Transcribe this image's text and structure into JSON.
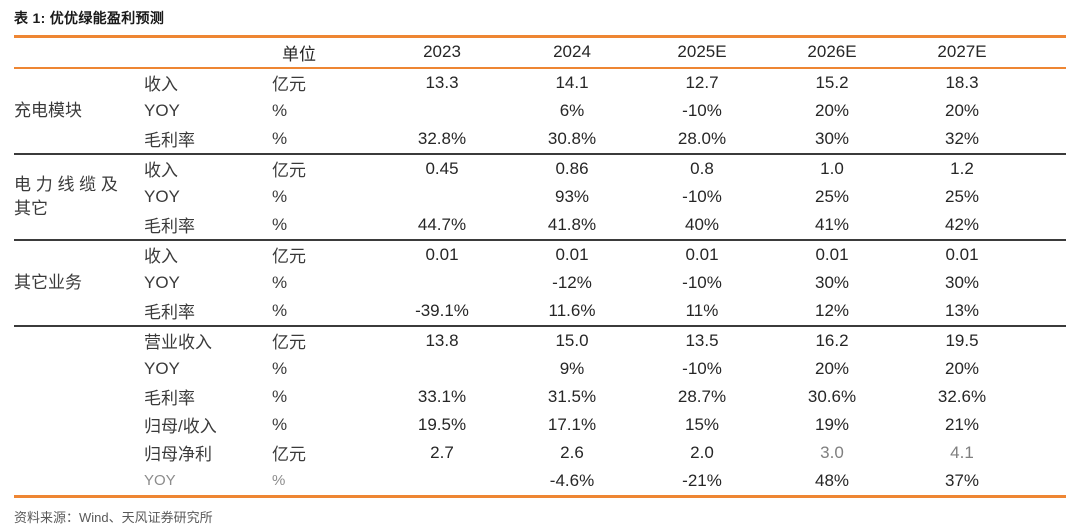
{
  "title": "表 1: 优优绿能盈利预测",
  "source": "资料来源：Wind、天风证券研究所",
  "colors": {
    "accent_orange": "#EE8633",
    "dark_separator": "#3B3B3B",
    "body_text": "#262626",
    "muted_value": "#7F7F7F",
    "source_text": "#595959"
  },
  "table": {
    "headers": [
      "",
      "",
      "单位",
      "2023",
      "2024",
      "2025E",
      "2026E",
      "2027E"
    ],
    "groups": [
      {
        "name": "充电模块",
        "rows": [
          {
            "metric": "收入",
            "unit": "亿元",
            "values": [
              "13.3",
              "14.1",
              "12.7",
              "15.2",
              "18.3"
            ]
          },
          {
            "metric": "YOY",
            "unit": "%",
            "values": [
              "",
              "6%",
              "-10%",
              "20%",
              "20%"
            ]
          },
          {
            "metric": "毛利率",
            "unit": "%",
            "values": [
              "32.8%",
              "30.8%",
              "28.0%",
              "30%",
              "32%"
            ]
          }
        ]
      },
      {
        "name": "电力线缆及其它",
        "name_lines": [
          "电 力 线 缆 及",
          "其它"
        ],
        "rows": [
          {
            "metric": "收入",
            "unit": "亿元",
            "values": [
              "0.45",
              "0.86",
              "0.8",
              "1.0",
              "1.2"
            ]
          },
          {
            "metric": "YOY",
            "unit": "%",
            "values": [
              "",
              "93%",
              "-10%",
              "25%",
              "25%"
            ]
          },
          {
            "metric": "毛利率",
            "unit": "%",
            "values": [
              "44.7%",
              "41.8%",
              "40%",
              "41%",
              "42%"
            ]
          }
        ]
      },
      {
        "name": "其它业务",
        "rows": [
          {
            "metric": "收入",
            "unit": "亿元",
            "values": [
              "0.01",
              "0.01",
              "0.01",
              "0.01",
              "0.01"
            ]
          },
          {
            "metric": "YOY",
            "unit": "%",
            "values": [
              "",
              "-12%",
              "-10%",
              "30%",
              "30%"
            ]
          },
          {
            "metric": "毛利率",
            "unit": "%",
            "values": [
              "-39.1%",
              "11.6%",
              "11%",
              "12%",
              "13%"
            ]
          }
        ]
      },
      {
        "name": "",
        "rows": [
          {
            "metric": "营业收入",
            "unit": "亿元",
            "values": [
              "13.8",
              "15.0",
              "13.5",
              "16.2",
              "19.5"
            ]
          },
          {
            "metric": "YOY",
            "unit": "%",
            "values": [
              "",
              "9%",
              "-10%",
              "20%",
              "20%"
            ]
          },
          {
            "metric": "毛利率",
            "unit": "%",
            "values": [
              "33.1%",
              "31.5%",
              "28.7%",
              "30.6%",
              "32.6%"
            ]
          },
          {
            "metric": "归母/收入",
            "unit": "%",
            "values": [
              "19.5%",
              "17.1%",
              "15%",
              "19%",
              "21%"
            ]
          },
          {
            "metric": "归母净利",
            "unit": "亿元",
            "values": [
              "2.7",
              "2.6",
              "2.0",
              "3.0",
              "4.1"
            ],
            "muted_value_indices": [
              3,
              4
            ]
          },
          {
            "metric": "YOY",
            "unit": "%",
            "values": [
              "",
              "-4.6%",
              "-21%",
              "48%",
              "37%"
            ],
            "muted_label": true
          }
        ]
      }
    ]
  }
}
